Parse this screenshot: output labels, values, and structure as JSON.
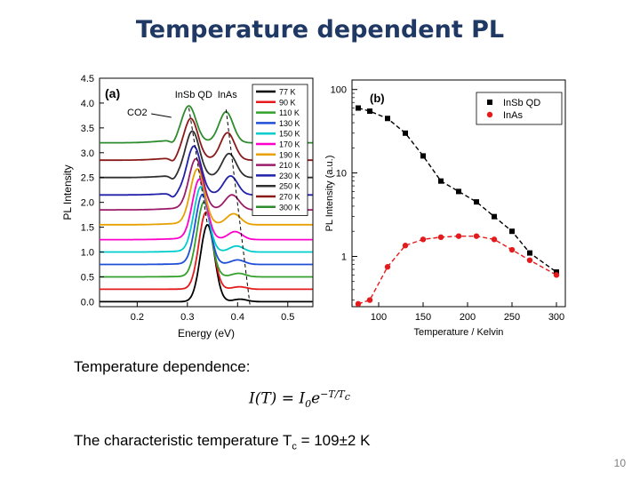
{
  "slide": {
    "title": "Temperature dependent PL",
    "dependence_label": "Temperature dependence:",
    "formula": {
      "lhs": "I(T) = I",
      "sub0": "0",
      "base": "e",
      "exp_num": "−T/T",
      "exp_sub": "c"
    },
    "tc_text_before": "The characteristic temperature T",
    "tc_sub": "c",
    "tc_text_after": " = 109±2 K",
    "page_number": "10"
  },
  "chart_data": [
    {
      "panel_label": "(a)",
      "type": "line",
      "xlabel": "Energy (eV)",
      "ylabel": "PL Intensity",
      "xlim": [
        0.125,
        0.55
      ],
      "ylim": [
        -0.1,
        4.5
      ],
      "x_ticks": [
        "0.2",
        "0.3",
        "0.4",
        "0.5"
      ],
      "x_tick_values": [
        0.2,
        0.3,
        0.4,
        0.5
      ],
      "y_ticks": [
        "0.0",
        "0.5",
        "1.0",
        "1.5",
        "2.0",
        "2.5",
        "3.0",
        "3.5",
        "4.0",
        "4.5"
      ],
      "y_tick_values": [
        0.0,
        0.5,
        1.0,
        1.5,
        2.0,
        2.5,
        3.0,
        3.5,
        4.0,
        4.5
      ],
      "annotations": [
        "InSb QD",
        "InAs",
        "CO2"
      ],
      "legend_position": "top-right",
      "series": [
        {
          "name": "77 K",
          "color": "#000000",
          "offset": 0.0,
          "qd_peak": 0.34,
          "qd_amp": 1.55,
          "inas_peak": 0.405,
          "inas_amp": 0.05
        },
        {
          "name": "90 K",
          "color": "#e41a1c",
          "offset": 0.25,
          "qd_peak": 0.337,
          "qd_amp": 1.55,
          "inas_peak": 0.404,
          "inas_amp": 0.05
        },
        {
          "name": "110 K",
          "color": "#33a02c",
          "offset": 0.5,
          "qd_peak": 0.333,
          "qd_amp": 1.5,
          "inas_peak": 0.402,
          "inas_amp": 0.07
        },
        {
          "name": "130 K",
          "color": "#1f4fd6",
          "offset": 0.75,
          "qd_peak": 0.33,
          "qd_amp": 1.4,
          "inas_peak": 0.4,
          "inas_amp": 0.09
        },
        {
          "name": "150 K",
          "color": "#00cccc",
          "offset": 1.0,
          "qd_peak": 0.327,
          "qd_amp": 1.3,
          "inas_peak": 0.398,
          "inas_amp": 0.12
        },
        {
          "name": "170 K",
          "color": "#ff00cc",
          "offset": 1.25,
          "qd_peak": 0.324,
          "qd_amp": 1.2,
          "inas_peak": 0.395,
          "inas_amp": 0.16
        },
        {
          "name": "190 K",
          "color": "#e8a000",
          "offset": 1.55,
          "qd_peak": 0.32,
          "qd_amp": 1.1,
          "inas_peak": 0.392,
          "inas_amp": 0.22
        },
        {
          "name": "210 K",
          "color": "#9b1c6a",
          "offset": 1.85,
          "qd_peak": 0.317,
          "qd_amp": 1.0,
          "inas_peak": 0.389,
          "inas_amp": 0.3
        },
        {
          "name": "230 K",
          "color": "#2020aa",
          "offset": 2.15,
          "qd_peak": 0.313,
          "qd_amp": 0.95,
          "inas_peak": 0.386,
          "inas_amp": 0.38
        },
        {
          "name": "250 K",
          "color": "#303030",
          "offset": 2.5,
          "qd_peak": 0.31,
          "qd_amp": 0.9,
          "inas_peak": 0.383,
          "inas_amp": 0.48
        },
        {
          "name": "270 K",
          "color": "#8b1a1a",
          "offset": 2.85,
          "qd_peak": 0.307,
          "qd_amp": 0.8,
          "inas_peak": 0.38,
          "inas_amp": 0.55
        },
        {
          "name": "300 K",
          "color": "#2e8b2e",
          "offset": 3.2,
          "qd_peak": 0.303,
          "qd_amp": 0.7,
          "inas_peak": 0.377,
          "inas_amp": 0.62
        }
      ]
    },
    {
      "panel_label": "(b)",
      "type": "scatter",
      "xlabel": "Temperature / Kelvin",
      "ylabel": "PL Intensity (a.u.)",
      "xlim": [
        70,
        310
      ],
      "ylim": [
        0.25,
        130
      ],
      "yscale": "log",
      "x_ticks": [
        "100",
        "150",
        "200",
        "250",
        "300"
      ],
      "x_tick_values": [
        100,
        150,
        200,
        250,
        300
      ],
      "y_ticks": [
        "1",
        "10",
        "100"
      ],
      "y_tick_values": [
        1,
        10,
        100
      ],
      "legend_position": "top-right",
      "series": [
        {
          "name": "InSb QD",
          "color": "#000000",
          "marker": "square",
          "x": [
            77,
            90,
            110,
            130,
            150,
            170,
            190,
            210,
            230,
            250,
            270,
            300
          ],
          "y": [
            60,
            55,
            45,
            30,
            16,
            8,
            6,
            4.5,
            3,
            2,
            1.1,
            0.65
          ]
        },
        {
          "name": "InAs",
          "color": "#e41a1c",
          "marker": "circle",
          "x": [
            77,
            90,
            110,
            130,
            150,
            170,
            190,
            210,
            230,
            250,
            270,
            300
          ],
          "y": [
            0.27,
            0.3,
            0.75,
            1.35,
            1.6,
            1.7,
            1.75,
            1.75,
            1.6,
            1.2,
            0.9,
            0.6
          ]
        }
      ]
    }
  ]
}
